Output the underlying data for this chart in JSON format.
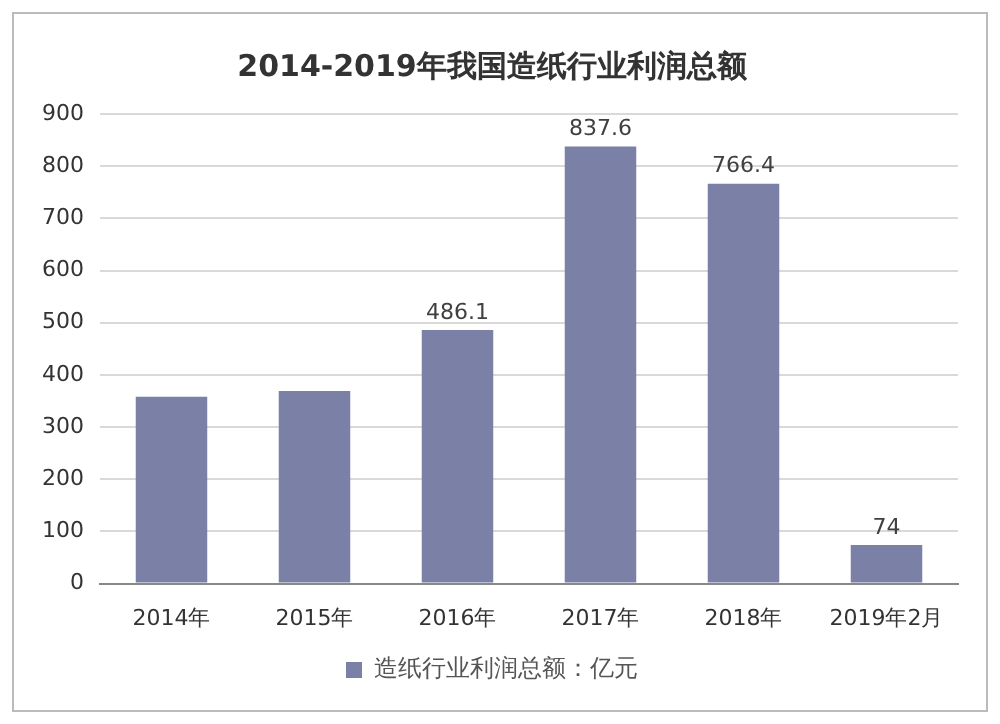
{
  "chart_data": {
    "type": "bar",
    "title": "2014-2019年我国造纸行业利润总额",
    "categories": [
      "2014年",
      "2015年",
      "2016年",
      "2017年",
      "2018年",
      "2019年2月"
    ],
    "series": [
      {
        "name": "造纸行业利润总额：亿元",
        "color": "#7a80a6",
        "values": [
          358,
          369,
          486.1,
          837.6,
          766.4,
          74
        ],
        "value_labels": [
          null,
          null,
          "486.1",
          "837.6",
          "766.4",
          "74"
        ]
      }
    ],
    "ylim": [
      0,
      900
    ],
    "yticks": [
      0,
      100,
      200,
      300,
      400,
      500,
      600,
      700,
      800,
      900
    ],
    "grid": "y",
    "legend": "bottom"
  }
}
